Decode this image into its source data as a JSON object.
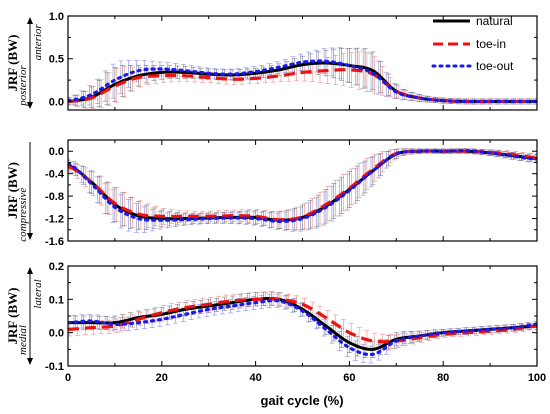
{
  "colors": {
    "natural": "#000000",
    "toe_in": "#ee1111",
    "toe_out": "#1a1aee",
    "errbar_natural": "#7a7a7a",
    "errbar_toe_in": "#f08a8a",
    "errbar_toe_out": "#8a8ae6"
  },
  "legend": {
    "placement": "top-right of top panel",
    "items": [
      {
        "key": "natural",
        "label": "natural",
        "style": "solid"
      },
      {
        "key": "toe_in",
        "label": "toe-in",
        "style": "dashed"
      },
      {
        "key": "toe_out",
        "label": "toe-out",
        "style": "dotted"
      }
    ]
  },
  "chart_data": [
    {
      "type": "line",
      "ylabel": "JRF (BW)",
      "ylabel_top": "anterior",
      "ylabel_bottom": "posterior",
      "xlim": [
        0,
        100
      ],
      "ylim": [
        -0.1,
        1.0
      ],
      "yticks": [
        0.0,
        0.5,
        1.0
      ],
      "ytick_labels": [
        "0.0",
        "0.5",
        "1.0"
      ],
      "xticks": [
        0,
        20,
        40,
        60,
        80,
        100
      ],
      "xtick_labels": [
        "",
        "",
        "",
        "",
        "",
        ""
      ],
      "x": [
        0,
        5,
        10,
        15,
        20,
        25,
        30,
        35,
        40,
        45,
        50,
        55,
        60,
        65,
        70,
        75,
        80,
        85,
        90,
        95,
        100
      ],
      "error": [
        0.04,
        0.12,
        0.2,
        0.12,
        0.08,
        0.07,
        0.06,
        0.06,
        0.06,
        0.07,
        0.1,
        0.15,
        0.2,
        0.22,
        0.08,
        0.04,
        0.03,
        0.03,
        0.03,
        0.03,
        0.03
      ],
      "series": [
        {
          "name": "natural",
          "key": "natural",
          "values": [
            0.0,
            0.05,
            0.2,
            0.3,
            0.34,
            0.34,
            0.32,
            0.31,
            0.33,
            0.37,
            0.43,
            0.45,
            0.42,
            0.36,
            0.12,
            0.04,
            0.01,
            0.0,
            0.0,
            0.0,
            0.0
          ]
        },
        {
          "name": "toe-in",
          "key": "toe_in",
          "values": [
            0.0,
            0.04,
            0.18,
            0.28,
            0.3,
            0.3,
            0.28,
            0.26,
            0.27,
            0.3,
            0.34,
            0.36,
            0.37,
            0.32,
            0.12,
            0.04,
            0.01,
            0.0,
            0.0,
            0.0,
            0.0
          ]
        },
        {
          "name": "toe-out",
          "key": "toe_out",
          "values": [
            0.01,
            0.08,
            0.25,
            0.36,
            0.38,
            0.36,
            0.33,
            0.32,
            0.35,
            0.4,
            0.46,
            0.47,
            0.42,
            0.33,
            0.11,
            0.04,
            0.01,
            0.0,
            0.0,
            0.0,
            0.0
          ]
        }
      ]
    },
    {
      "type": "line",
      "ylabel": "JRF (BW)",
      "ylabel_top": "",
      "ylabel_bottom": "compressive",
      "xlim": [
        0,
        100
      ],
      "ylim": [
        -1.6,
        0.2
      ],
      "yticks": [
        0.0,
        -0.4,
        -0.8,
        -1.2,
        -1.6
      ],
      "ytick_labels": [
        "0.0",
        "-0.4",
        "-0.8",
        "-1.2",
        "-1.6"
      ],
      "xticks": [
        0,
        20,
        40,
        60,
        80,
        100
      ],
      "xtick_labels": [
        "",
        "",
        "",
        "",
        "",
        ""
      ],
      "x": [
        0,
        5,
        10,
        15,
        20,
        25,
        30,
        35,
        40,
        45,
        50,
        55,
        60,
        65,
        70,
        75,
        80,
        85,
        90,
        95,
        100
      ],
      "error": [
        0.08,
        0.2,
        0.3,
        0.25,
        0.15,
        0.1,
        0.09,
        0.1,
        0.12,
        0.15,
        0.22,
        0.3,
        0.32,
        0.25,
        0.08,
        0.04,
        0.04,
        0.04,
        0.05,
        0.06,
        0.07
      ],
      "series": [
        {
          "name": "natural",
          "key": "natural",
          "values": [
            -0.25,
            -0.55,
            -0.95,
            -1.15,
            -1.2,
            -1.2,
            -1.19,
            -1.18,
            -1.18,
            -1.23,
            -1.18,
            -0.98,
            -0.68,
            -0.35,
            -0.05,
            0.0,
            0.0,
            0.0,
            -0.03,
            -0.08,
            -0.13
          ]
        },
        {
          "name": "toe-in",
          "key": "toe_in",
          "values": [
            -0.27,
            -0.55,
            -0.93,
            -1.12,
            -1.16,
            -1.16,
            -1.16,
            -1.15,
            -1.16,
            -1.22,
            -1.17,
            -0.95,
            -0.66,
            -0.32,
            -0.04,
            0.0,
            0.0,
            0.0,
            -0.02,
            -0.06,
            -0.12
          ]
        },
        {
          "name": "toe-out",
          "key": "toe_out",
          "values": [
            -0.22,
            -0.58,
            -1.0,
            -1.2,
            -1.23,
            -1.22,
            -1.2,
            -1.19,
            -1.2,
            -1.25,
            -1.2,
            -1.0,
            -0.7,
            -0.35,
            -0.05,
            0.0,
            0.0,
            0.01,
            -0.03,
            -0.09,
            -0.14
          ]
        }
      ]
    },
    {
      "type": "line",
      "ylabel": "JRF (BW)",
      "ylabel_top": "lateral",
      "ylabel_bottom": "medial",
      "xlim": [
        0,
        100
      ],
      "ylim": [
        -0.1,
        0.2
      ],
      "yticks": [
        0.2,
        0.1,
        0.0,
        -0.1
      ],
      "ytick_labels": [
        "0.2",
        "0.1",
        "0.0",
        "-0.1"
      ],
      "xticks": [
        0,
        20,
        40,
        60,
        80,
        100
      ],
      "xtick_labels": [
        "0",
        "20",
        "40",
        "60",
        "80",
        "100"
      ],
      "xlabel": "gait cycle (%)",
      "x": [
        0,
        5,
        10,
        15,
        20,
        25,
        30,
        35,
        40,
        45,
        50,
        55,
        60,
        65,
        70,
        75,
        80,
        85,
        90,
        95,
        100
      ],
      "error": [
        0.02,
        0.02,
        0.02,
        0.02,
        0.02,
        0.02,
        0.02,
        0.02,
        0.02,
        0.02,
        0.02,
        0.025,
        0.03,
        0.025,
        0.02,
        0.015,
        0.01,
        0.01,
        0.01,
        0.01,
        0.01
      ],
      "series": [
        {
          "name": "natural",
          "key": "natural",
          "values": [
            0.03,
            0.03,
            0.03,
            0.045,
            0.055,
            0.07,
            0.08,
            0.09,
            0.1,
            0.1,
            0.07,
            0.02,
            -0.03,
            -0.05,
            -0.02,
            -0.01,
            0.0,
            0.005,
            0.01,
            0.015,
            0.02
          ]
        },
        {
          "name": "toe-in",
          "key": "toe_in",
          "values": [
            0.01,
            0.015,
            0.02,
            0.04,
            0.06,
            0.075,
            0.085,
            0.095,
            0.1,
            0.1,
            0.085,
            0.045,
            0.0,
            -0.025,
            -0.025,
            -0.015,
            -0.005,
            0.0,
            0.005,
            0.01,
            0.02
          ]
        },
        {
          "name": "toe-out",
          "key": "toe_out",
          "values": [
            0.03,
            0.035,
            0.025,
            0.03,
            0.04,
            0.055,
            0.07,
            0.08,
            0.09,
            0.095,
            0.065,
            0.01,
            -0.045,
            -0.065,
            -0.025,
            -0.01,
            0.0,
            0.005,
            0.01,
            0.015,
            0.025
          ]
        }
      ]
    }
  ]
}
